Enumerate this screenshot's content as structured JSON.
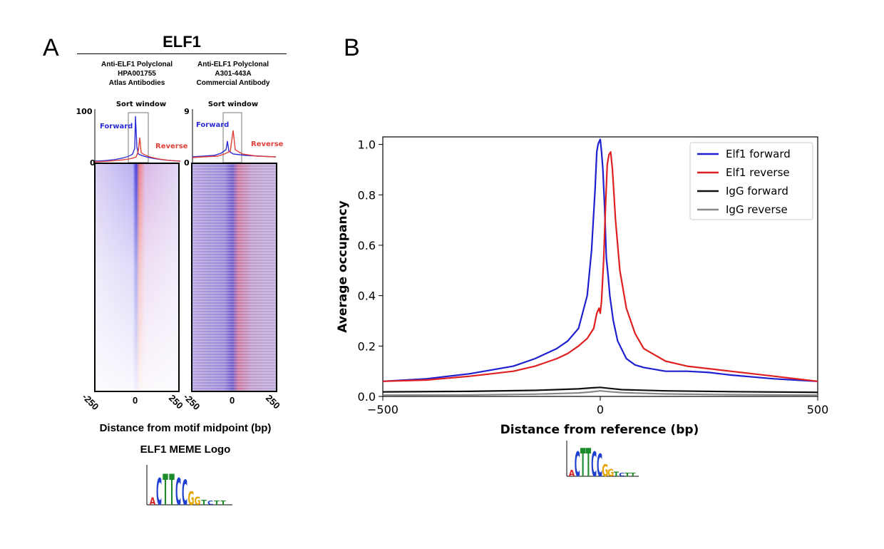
{
  "panel_a": {
    "letter": "A",
    "gene_title": "ELF1",
    "antibody1": {
      "line1": "Anti-ELF1 Polyclonal",
      "line2": "HPA001755",
      "line3": "Atlas Antibodies",
      "ymax": "100",
      "ymin": "0"
    },
    "antibody2": {
      "line1": "Anti-ELF1 Polyclonal",
      "line2": "A301-443A",
      "line3": "Commercial Antibody",
      "ymax": "9",
      "ymin": "0"
    },
    "sort_window": "Sort window",
    "forward": "Forward",
    "reverse": "Reverse",
    "xticks": [
      "-250",
      "0",
      "250"
    ],
    "xlabel": "Distance from motif midpoint (bp)",
    "logo_title": "ELF1 MEME Logo",
    "colors": {
      "forward": "#2b2bd6",
      "reverse": "#e0403a"
    }
  },
  "panel_b": {
    "letter": "B"
  },
  "logo": {
    "letters": [
      "A",
      "C",
      "T",
      "T",
      "C",
      "C",
      "G",
      "G",
      "T",
      "C",
      "T",
      "T"
    ],
    "colors": [
      "#d62020",
      "#1f3fcf",
      "#1a8a2a",
      "#1a8a2a",
      "#1f3fcf",
      "#1f3fcf",
      "#e6a400",
      "#e6a400",
      "#1a8a2a",
      "#1f3fcf",
      "#1a8a2a",
      "#1a8a2a"
    ]
  },
  "chart_data": {
    "type": "line",
    "title": "",
    "xlabel": "Distance from reference (bp)",
    "ylabel": "Average occupancy",
    "xlim": [
      -500,
      500
    ],
    "ylim": [
      0,
      1.03
    ],
    "xticks": [
      -500,
      0,
      500
    ],
    "yticks": [
      0.0,
      0.2,
      0.4,
      0.6,
      0.8,
      1.0
    ],
    "legend_position": "top-right",
    "series": [
      {
        "name": "Elf1 forward",
        "color": "#1f1fd0",
        "x": [
          -500,
          -400,
          -300,
          -200,
          -150,
          -100,
          -75,
          -50,
          -30,
          -20,
          -12,
          -8,
          -5,
          -3,
          0,
          3,
          6,
          10,
          14,
          18,
          22,
          30,
          40,
          60,
          80,
          100,
          150,
          200,
          250,
          300,
          400,
          500
        ],
        "y": [
          0.06,
          0.07,
          0.09,
          0.12,
          0.15,
          0.19,
          0.22,
          0.27,
          0.4,
          0.58,
          0.82,
          0.97,
          1.0,
          1.01,
          1.02,
          0.97,
          0.9,
          0.75,
          0.55,
          0.48,
          0.4,
          0.3,
          0.22,
          0.15,
          0.125,
          0.115,
          0.1,
          0.1,
          0.095,
          0.085,
          0.07,
          0.06
        ]
      },
      {
        "name": "Elf1 reverse",
        "color": "#e02020",
        "x": [
          -500,
          -400,
          -300,
          -200,
          -150,
          -100,
          -75,
          -50,
          -30,
          -15,
          -8,
          -3,
          0,
          3,
          8,
          12,
          16,
          20,
          24,
          28,
          35,
          45,
          60,
          80,
          100,
          150,
          200,
          250,
          300,
          400,
          500
        ],
        "y": [
          0.06,
          0.065,
          0.08,
          0.1,
          0.12,
          0.15,
          0.17,
          0.2,
          0.23,
          0.27,
          0.33,
          0.35,
          0.33,
          0.38,
          0.55,
          0.75,
          0.92,
          0.96,
          0.97,
          0.9,
          0.7,
          0.5,
          0.35,
          0.25,
          0.19,
          0.14,
          0.12,
          0.11,
          0.1,
          0.08,
          0.06
        ]
      },
      {
        "name": "IgG forward",
        "color": "#111111",
        "x": [
          -500,
          -300,
          -150,
          -50,
          -20,
          0,
          20,
          50,
          150,
          300,
          500
        ],
        "y": [
          0.018,
          0.02,
          0.024,
          0.03,
          0.034,
          0.036,
          0.032,
          0.027,
          0.022,
          0.019,
          0.016
        ]
      },
      {
        "name": "IgG reverse",
        "color": "#888888",
        "x": [
          -500,
          -300,
          -150,
          -50,
          -20,
          0,
          20,
          50,
          150,
          300,
          500
        ],
        "y": [
          0.005,
          0.006,
          0.009,
          0.014,
          0.018,
          0.022,
          0.019,
          0.015,
          0.01,
          0.007,
          0.005
        ]
      }
    ]
  }
}
